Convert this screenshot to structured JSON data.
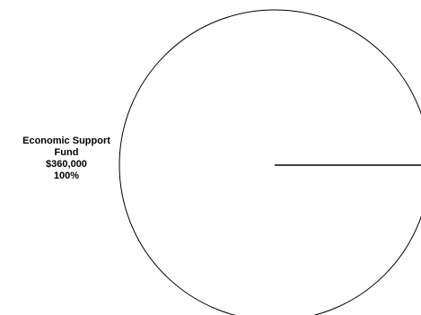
{
  "chart_data": {
    "type": "pie",
    "title": "",
    "slices": [
      {
        "label": "Economic Support Fund",
        "value": 360000,
        "value_text": "$360,000",
        "percent_text": "100%"
      }
    ],
    "colors": {
      "fill": "#ffffff",
      "stroke": "#000000"
    }
  }
}
